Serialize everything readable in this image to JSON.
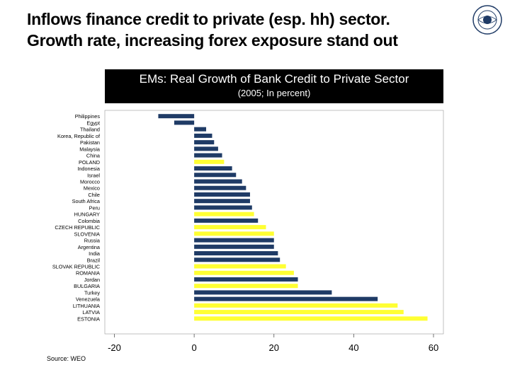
{
  "slide": {
    "title_line1": "Inflows finance credit to private (esp. hh) sector.",
    "title_line2": "Growth rate, increasing forex exposure stand out",
    "source": "Source: WEO"
  },
  "colors": {
    "navy": "#1f3b66",
    "yellow": "#ffff33",
    "header_bg": "#000000"
  },
  "chart_data": {
    "type": "bar",
    "orientation": "horizontal",
    "title": "EMs: Real Growth of Bank Credit to Private Sector",
    "subtitle": "(2005; In percent)",
    "xlim": [
      -20,
      60
    ],
    "xticks": [
      -20,
      0,
      20,
      40,
      60
    ],
    "categories": [
      "Philippines",
      "Egypt",
      "Thailand",
      "Korea, Republic of",
      "Pakistan",
      "Malaysia",
      "China",
      "POLAND",
      "Indonesia",
      "Israel",
      "Morocco",
      "Mexico",
      "Chile",
      "South Africa",
      "Peru",
      "HUNGARY",
      "Colombia",
      "CZECH REPUBLIC",
      "SLOVENIA",
      "Russia",
      "Argentina",
      "India",
      "Brazil",
      "SLOVAK REPUBLIC",
      "ROMANIA",
      "Jordan",
      "BULGARIA",
      "Turkey",
      "Venezuela",
      "LITHUANIA",
      "LATVIA",
      "ESTONIA"
    ],
    "values": [
      -9,
      -5,
      3,
      4.5,
      5,
      6,
      7,
      7.5,
      9.5,
      10.5,
      12,
      13,
      14,
      14,
      14.5,
      15,
      16,
      18,
      20,
      20,
      20,
      21,
      21.5,
      23,
      25,
      26,
      26,
      34.5,
      46,
      51,
      52.5,
      58.5
    ],
    "highlight": [
      false,
      false,
      false,
      false,
      false,
      false,
      false,
      true,
      false,
      false,
      false,
      false,
      false,
      false,
      false,
      true,
      false,
      true,
      true,
      false,
      false,
      false,
      false,
      true,
      true,
      false,
      true,
      false,
      false,
      true,
      true,
      true
    ]
  }
}
